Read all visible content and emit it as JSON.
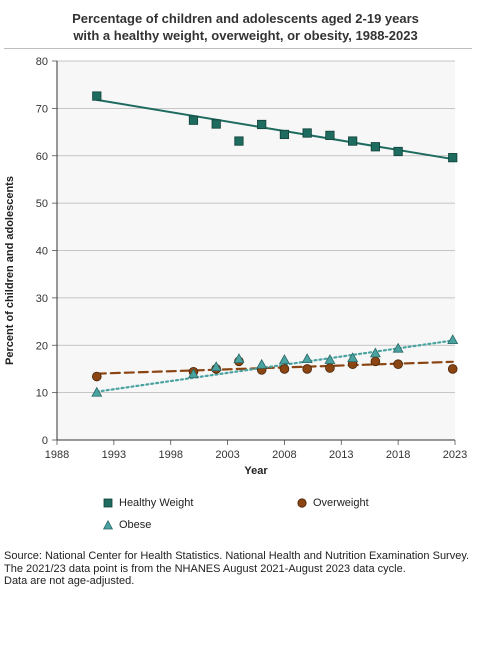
{
  "title_line1": "Percentage of children and adolescents aged 2-19 years",
  "title_line2": "with a healthy weight, overweight, or obesity, 1988-2023",
  "footer": {
    "line1": "Source: National Center for Health Statistics. National Health and Nutrition Examination Survey.",
    "line2": "The 2021/23 data point is from the NHANES August 2021-August 2023 data cycle.",
    "line3": "Data are not age-adjusted."
  },
  "chart_data": {
    "type": "scatter",
    "xlabel": "Year",
    "ylabel": "Percent of children and adolescents",
    "xlim": [
      1988,
      2023
    ],
    "ylim": [
      0,
      80
    ],
    "xticks": [
      1988,
      1993,
      1998,
      2003,
      2008,
      2013,
      2018,
      2023
    ],
    "yticks": [
      0,
      10,
      20,
      30,
      40,
      50,
      60,
      70,
      80
    ],
    "grid": "horizontal",
    "legend_position": "bottom",
    "series": [
      {
        "name": "Healthy Weight",
        "marker": "square",
        "color": "#1e6b5f",
        "trend_style": "solid",
        "x": [
          1991.5,
          2000.0,
          2002.0,
          2004.0,
          2006.0,
          2008.0,
          2010.0,
          2012.0,
          2014.0,
          2016.0,
          2018.0,
          2022.8
        ],
        "y": [
          72.6,
          67.5,
          66.7,
          63.1,
          66.6,
          64.5,
          64.8,
          64.3,
          63.1,
          61.9,
          60.9,
          59.6
        ],
        "trend": [
          [
            1991.5,
            71.8
          ],
          [
            2022.8,
            59.3
          ]
        ]
      },
      {
        "name": "Overweight",
        "marker": "circle",
        "color": "#8b4513",
        "trend_style": "dashed",
        "x": [
          1991.5,
          2000.0,
          2002.0,
          2004.0,
          2006.0,
          2008.0,
          2010.0,
          2012.0,
          2014.0,
          2016.0,
          2018.0,
          2022.8
        ],
        "y": [
          13.4,
          14.4,
          15.0,
          16.6,
          14.8,
          15.0,
          15.0,
          15.2,
          16.0,
          16.6,
          16.0,
          15.0
        ],
        "trend": [
          [
            1991.5,
            14.0
          ],
          [
            2022.8,
            16.5
          ]
        ]
      },
      {
        "name": "Obese",
        "marker": "triangle",
        "color": "#4aa3a0",
        "trend_style": "dotted",
        "x": [
          1991.5,
          2000.0,
          2002.0,
          2004.0,
          2006.0,
          2008.0,
          2010.0,
          2012.0,
          2014.0,
          2016.0,
          2018.0,
          2022.8
        ],
        "y": [
          10.0,
          13.9,
          15.4,
          17.1,
          15.9,
          16.9,
          17.1,
          16.9,
          17.3,
          18.3,
          19.3,
          21.1
        ],
        "trend": [
          [
            1991.5,
            10.2
          ],
          [
            2022.8,
            21.0
          ]
        ]
      }
    ]
  }
}
